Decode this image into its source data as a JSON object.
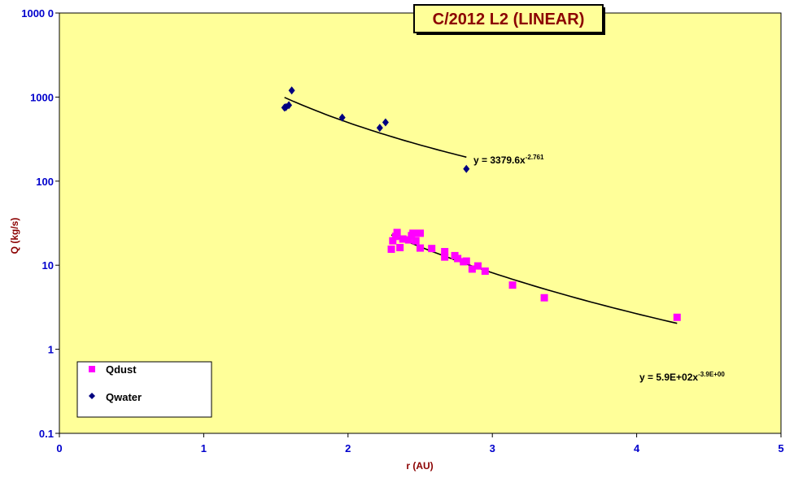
{
  "chart_data": {
    "type": "scatter",
    "title": "C/2012 L2 (LINEAR)",
    "xlabel": "r (AU)",
    "ylabel": "Q (kg/s)",
    "xlim": [
      0,
      5
    ],
    "ylim": [
      0.1,
      10000
    ],
    "yscale": "log",
    "x_ticks": [
      "0",
      "1",
      "2",
      "3",
      "4",
      "5"
    ],
    "y_ticks": [
      "0.1",
      "1",
      "10",
      "100",
      "1000",
      "1000 0"
    ],
    "grid": false,
    "legend_position": "bottom-left",
    "colors": {
      "plot_bg": "#ffff99",
      "qdust": "#ff00ff",
      "qwater": "#000080",
      "title": "#8b0000",
      "ticks": "#0000cc"
    },
    "series": [
      {
        "name": "Qdust",
        "marker": "square",
        "points": [
          [
            2.3,
            15.5
          ],
          [
            2.31,
            19.5
          ],
          [
            2.33,
            22.0
          ],
          [
            2.34,
            24.5
          ],
          [
            2.36,
            16.2
          ],
          [
            2.38,
            20.5
          ],
          [
            2.42,
            20.0
          ],
          [
            2.44,
            22.5
          ],
          [
            2.45,
            24.0
          ],
          [
            2.47,
            19.5
          ],
          [
            2.5,
            16.0
          ],
          [
            2.5,
            24.0
          ],
          [
            2.58,
            15.8
          ],
          [
            2.67,
            12.5
          ],
          [
            2.67,
            14.5
          ],
          [
            2.74,
            13.0
          ],
          [
            2.76,
            12.0
          ],
          [
            2.8,
            11.0
          ],
          [
            2.82,
            11.2
          ],
          [
            2.86,
            9.0
          ],
          [
            2.9,
            9.8
          ],
          [
            2.95,
            8.5
          ],
          [
            3.14,
            5.8
          ],
          [
            3.36,
            4.1
          ],
          [
            4.28,
            2.4
          ]
        ],
        "trendline": {
          "equation": "y = 5.9E+02x",
          "exponent": "-3.9E+00",
          "coef": 590,
          "power": -3.9,
          "x_range": [
            2.3,
            4.28
          ]
        }
      },
      {
        "name": "Qwater",
        "marker": "diamond",
        "points": [
          [
            1.56,
            750
          ],
          [
            1.57,
            760
          ],
          [
            1.59,
            800
          ],
          [
            1.61,
            1200
          ],
          [
            1.96,
            570
          ],
          [
            2.22,
            430
          ],
          [
            2.26,
            500
          ],
          [
            2.82,
            140
          ]
        ],
        "trendline": {
          "equation": "y = 3379.6x",
          "exponent": "-2.761",
          "coef": 3379.6,
          "power": -2.761,
          "x_range": [
            1.56,
            2.82
          ]
        }
      }
    ]
  }
}
